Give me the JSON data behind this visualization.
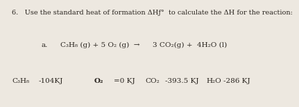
{
  "bg_color": "#ede8e0",
  "title_line": "6.   Use the standard heat of formation ΔHƒ°  to calculate the ΔH for the reaction:",
  "label_a": "a.",
  "reaction_left": "C₃H₈ (g) + 5 O₂ (g)  →",
  "reaction_right": "3 CO₂(g) +  4H₂O (l)",
  "c3h8_label": "C₃H₈",
  "c3h8_val": "-104KJ",
  "o2_label": "O₂",
  "o2_val": "=0 KJ",
  "co2_label": "CO₂",
  "co2_val": "-393.5 KJ",
  "h2o_label": "H₂O",
  "h2o_val": "-286 KJ",
  "text_color": "#2a2520",
  "font_size_title": 7.0,
  "font_size_reaction": 7.5,
  "font_size_data": 7.5
}
